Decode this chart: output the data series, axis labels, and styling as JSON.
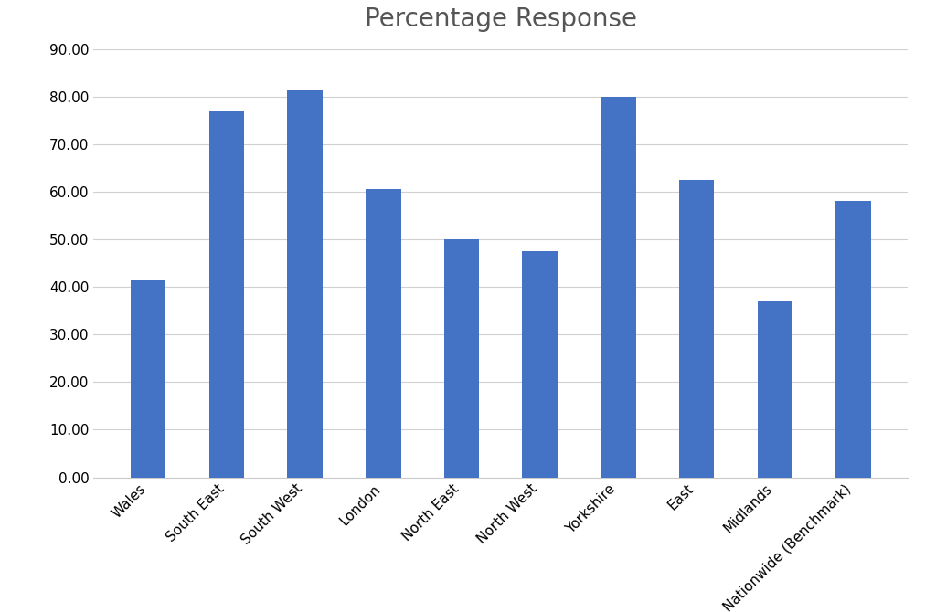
{
  "title": "Percentage Response",
  "categories": [
    "Wales",
    "South East",
    "South West",
    "London",
    "North East",
    "North West",
    "Yorkshire",
    "East",
    "Midlands",
    "Nationwide (Benchmark)"
  ],
  "values": [
    41.5,
    77.0,
    81.5,
    60.5,
    50.0,
    47.5,
    80.0,
    62.5,
    37.0,
    58.0
  ],
  "bar_color": "#4472C4",
  "ylim": [
    0,
    90
  ],
  "yticks": [
    0.0,
    10.0,
    20.0,
    30.0,
    40.0,
    50.0,
    60.0,
    70.0,
    80.0,
    90.0
  ],
  "title_fontsize": 20,
  "tick_fontsize": 11,
  "background_color": "#ffffff",
  "grid_color": "#d0d0d0",
  "bar_width": 0.45
}
